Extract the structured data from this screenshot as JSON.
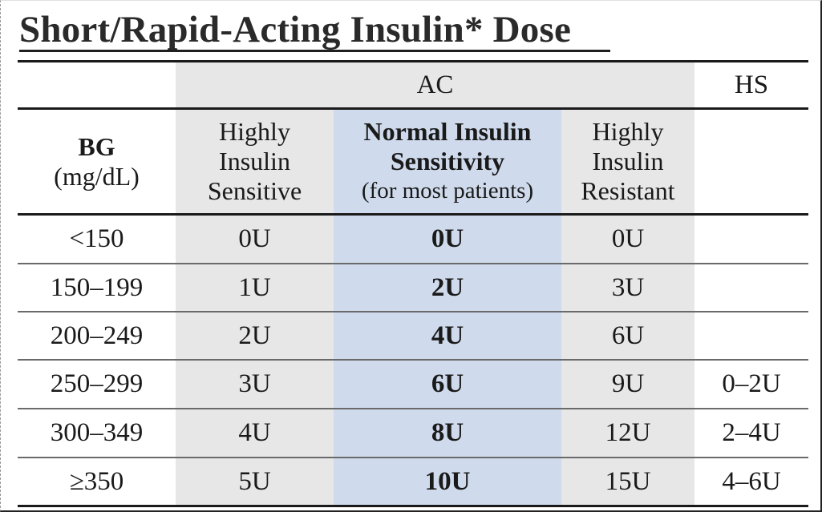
{
  "title": "Short/Rapid-Acting Insulin* Dose",
  "group_headers": {
    "ac": "AC",
    "hs": "HS"
  },
  "columns": {
    "bg": {
      "line1": "BG",
      "line2": "(mg/dL)"
    },
    "highly_sensitive": {
      "line1": "Highly",
      "line2": "Insulin",
      "line3": "Sensitive"
    },
    "normal": {
      "line1": "Normal Insulin",
      "line2": "Sensitivity",
      "line3": "(for most patients)"
    },
    "highly_resistant": {
      "line1": "Highly",
      "line2": "Insulin",
      "line3": "Resistant"
    }
  },
  "rows": [
    {
      "bg": "<150",
      "sensitive": "0U",
      "normal": "0U",
      "resistant": "0U",
      "hs": ""
    },
    {
      "bg": "150–199",
      "sensitive": "1U",
      "normal": "2U",
      "resistant": "3U",
      "hs": ""
    },
    {
      "bg": "200–249",
      "sensitive": "2U",
      "normal": "4U",
      "resistant": "6U",
      "hs": ""
    },
    {
      "bg": "250–299",
      "sensitive": "3U",
      "normal": "6U",
      "resistant": "9U",
      "hs": "0–2U"
    },
    {
      "bg": "300–349",
      "sensitive": "4U",
      "normal": "8U",
      "resistant": "12U",
      "hs": "2–4U"
    },
    {
      "bg": "≥350",
      "sensitive": "5U",
      "normal": "10U",
      "resistant": "15U",
      "hs": "4–6U"
    }
  ],
  "colors": {
    "ac_shade": "#e7e7e7",
    "normal_column_shade": "#cfdbec",
    "rules": "#1a1a1a"
  }
}
